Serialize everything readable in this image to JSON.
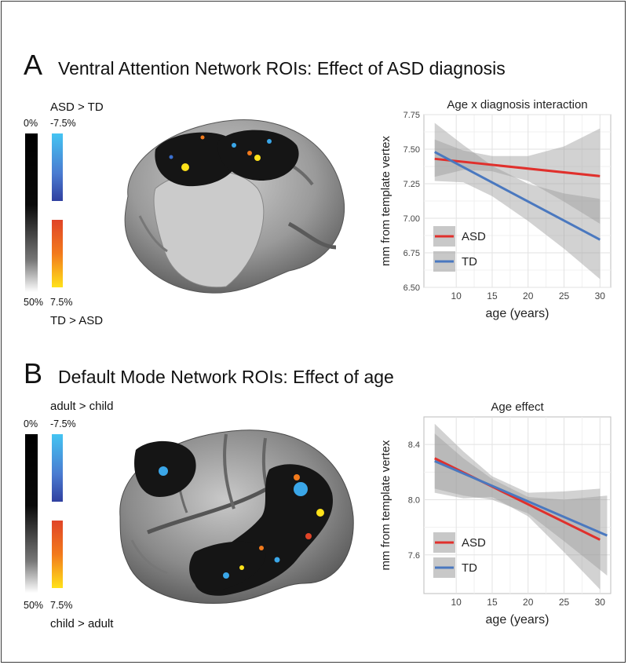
{
  "panelA": {
    "letter": "A",
    "title": "Ventral Attention Network ROIs: Effect of ASD diagnosis",
    "scale": {
      "top_label": "ASD > TD",
      "bottom_label": "TD > ASD",
      "pct_top_left": "0%",
      "pct_top_right": "-7.5%",
      "pct_bottom_left": "50%",
      "pct_bottom_right": "7.5%"
    }
  },
  "panelB": {
    "letter": "B",
    "title": "Default Mode Network ROIs: Effect of age",
    "scale": {
      "top_label": "adult > child",
      "bottom_label": "child > adult",
      "pct_top_left": "0%",
      "pct_top_right": "-7.5%",
      "pct_bottom_left": "50%",
      "pct_bottom_right": "7.5%"
    }
  },
  "colors": {
    "asd": "#e0302c",
    "td": "#4a78bf",
    "ci": "#9b9b9b"
  },
  "chart_data": [
    {
      "type": "line",
      "title": "Age x diagnosis interaction",
      "xlabel": "age (years)",
      "ylabel": "mm from template vertex",
      "xlim": [
        5.5,
        31.5
      ],
      "ylim": [
        6.5,
        7.75
      ],
      "xticks": [
        10,
        15,
        20,
        25,
        30
      ],
      "yticks": [
        6.5,
        6.75,
        7.0,
        7.25,
        7.5,
        7.75
      ],
      "ytick_labels": [
        "6.50",
        "6.75",
        "7.00",
        "7.25",
        "7.50",
        "7.75"
      ],
      "grid": true,
      "legend_position": "bottom-left",
      "series": [
        {
          "name": "ASD",
          "x": [
            7,
            30
          ],
          "y": [
            7.43,
            7.305
          ],
          "ci_x": [
            7,
            11,
            15,
            20,
            25,
            30
          ],
          "ci_upper": [
            7.57,
            7.49,
            7.45,
            7.45,
            7.52,
            7.65
          ],
          "ci_lower": [
            7.3,
            7.35,
            7.34,
            7.27,
            7.12,
            6.96
          ]
        },
        {
          "name": "TD",
          "x": [
            7,
            30
          ],
          "y": [
            7.48,
            6.845
          ],
          "ci_x": [
            7,
            11,
            15,
            20,
            25,
            30
          ],
          "ci_upper": [
            7.69,
            7.53,
            7.38,
            7.25,
            7.18,
            7.14
          ],
          "ci_lower": [
            7.27,
            7.26,
            7.16,
            6.98,
            6.78,
            6.56
          ]
        }
      ]
    },
    {
      "type": "line",
      "title": "Age effect",
      "xlabel": "age (years)",
      "ylabel": "mm from template vertex",
      "xlim": [
        5.5,
        31.5
      ],
      "ylim": [
        7.32,
        8.6
      ],
      "xticks": [
        10,
        15,
        20,
        25,
        30
      ],
      "yticks": [
        7.6,
        8.0,
        8.4
      ],
      "ytick_labels": [
        "7.6",
        "8.0",
        "8.4"
      ],
      "grid": true,
      "legend_position": "bottom-left",
      "series": [
        {
          "name": "ASD",
          "x": [
            7,
            30
          ],
          "y": [
            8.3,
            7.71
          ],
          "ci_x": [
            7,
            11,
            15,
            20,
            25,
            30
          ],
          "ci_upper": [
            8.55,
            8.35,
            8.17,
            8.05,
            8.06,
            8.08
          ],
          "ci_lower": [
            8.05,
            8.01,
            8.02,
            7.88,
            7.62,
            7.35
          ]
        },
        {
          "name": "TD",
          "x": [
            7,
            31
          ],
          "y": [
            8.28,
            7.74
          ],
          "ci_x": [
            7,
            11,
            15,
            20,
            25,
            31
          ],
          "ci_upper": [
            8.48,
            8.3,
            8.15,
            8.02,
            8.0,
            8.03
          ],
          "ci_lower": [
            8.08,
            8.03,
            8.0,
            7.9,
            7.7,
            7.45
          ]
        }
      ]
    }
  ]
}
